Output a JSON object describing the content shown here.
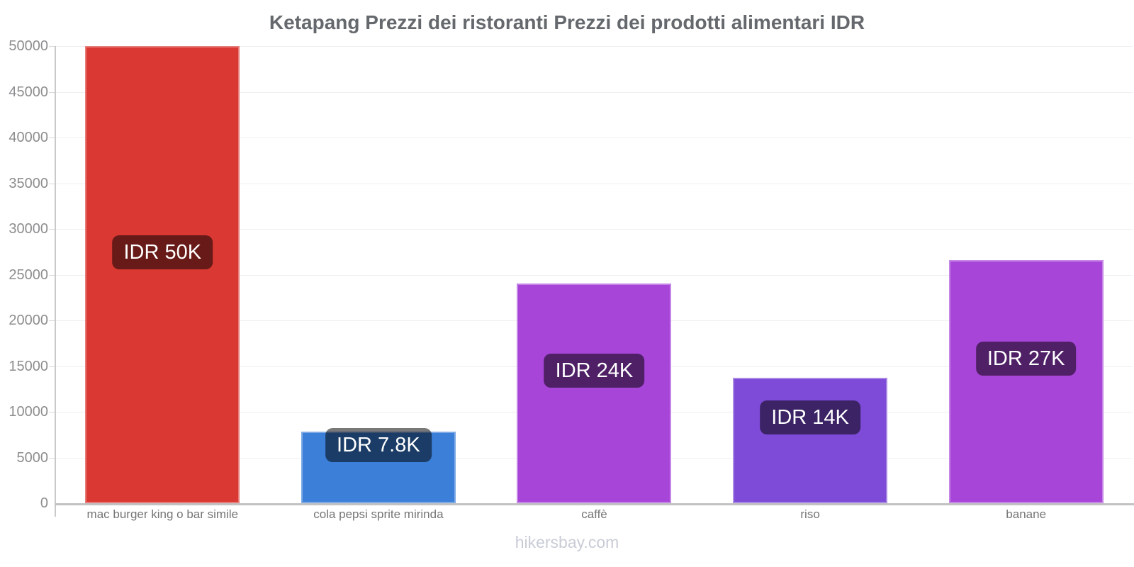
{
  "chart_data": {
    "type": "bar",
    "title": "Ketapang Prezzi dei ristoranti Prezzi dei prodotti alimentari IDR",
    "categories": [
      "mac burger king o bar simile",
      "cola pepsi sprite mirinda",
      "caffè",
      "riso",
      "banane"
    ],
    "values": [
      50000,
      7800,
      24000,
      13750,
      26600
    ],
    "value_labels": [
      "IDR 50K",
      "IDR 7.8K",
      "IDR 24K",
      "IDR 14K",
      "IDR 27K"
    ],
    "bar_colors": [
      "#da3832",
      "#3b7fd8",
      "#a845d9",
      "#7d4bd8",
      "#a845d9"
    ],
    "ylim": [
      0,
      50000
    ],
    "yticks": [
      0,
      5000,
      10000,
      15000,
      20000,
      25000,
      30000,
      35000,
      40000,
      45000,
      50000
    ],
    "xlabel": "",
    "ylabel": "",
    "grid": true,
    "legend": false,
    "currency": "IDR"
  },
  "watermark": "hikersbay.com",
  "theme": {
    "background": "#ffffff",
    "title_text": "#65686c",
    "tick_text": "#8d8d8f",
    "category_text": "#757577",
    "axis_line": "#c9c9cb",
    "baseline": "#c2c2c4",
    "gridline": "#efeff1",
    "badge_overlay": "rgba(0,0,0,0.53)",
    "badge_text": "#ffffff",
    "watermark_text": "#c9ccd6"
  }
}
